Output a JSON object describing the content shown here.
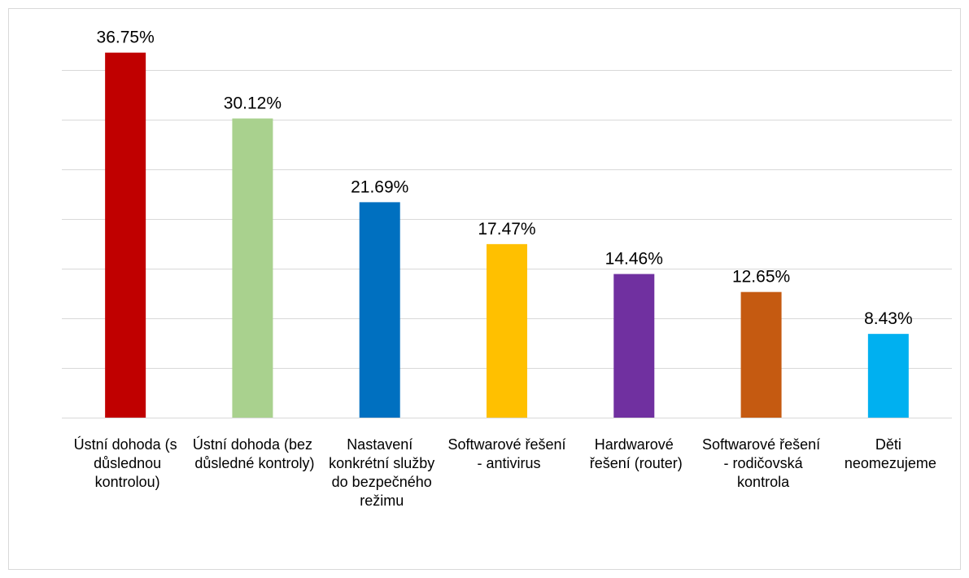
{
  "chart_data": {
    "type": "bar",
    "categories": [
      "Ústní dohoda (s důslednou kontrolou)",
      "Ústní dohoda (bez důsledné kontroly)",
      "Nastavení konkrétní služby do bezpečného režimu",
      "Softwarové řešení - antivirus",
      "Hardwarové řešení (router)",
      "Softwarové řešení - rodičovská kontrola",
      "Děti neomezujeme"
    ],
    "values": [
      36.75,
      30.12,
      21.69,
      17.47,
      14.46,
      12.65,
      8.43
    ],
    "value_labels": [
      "36.75%",
      "30.12%",
      "21.69%",
      "17.47%",
      "14.46%",
      "12.65%",
      "8.43%"
    ],
    "colors": [
      "#c00000",
      "#a9d18e",
      "#0070c0",
      "#ffc000",
      "#7030a0",
      "#c55a11",
      "#00b0f0"
    ],
    "ylim": [
      0,
      40
    ],
    "yticks": [
      0,
      5,
      10,
      15,
      20,
      25,
      30,
      35
    ],
    "grid": true
  }
}
